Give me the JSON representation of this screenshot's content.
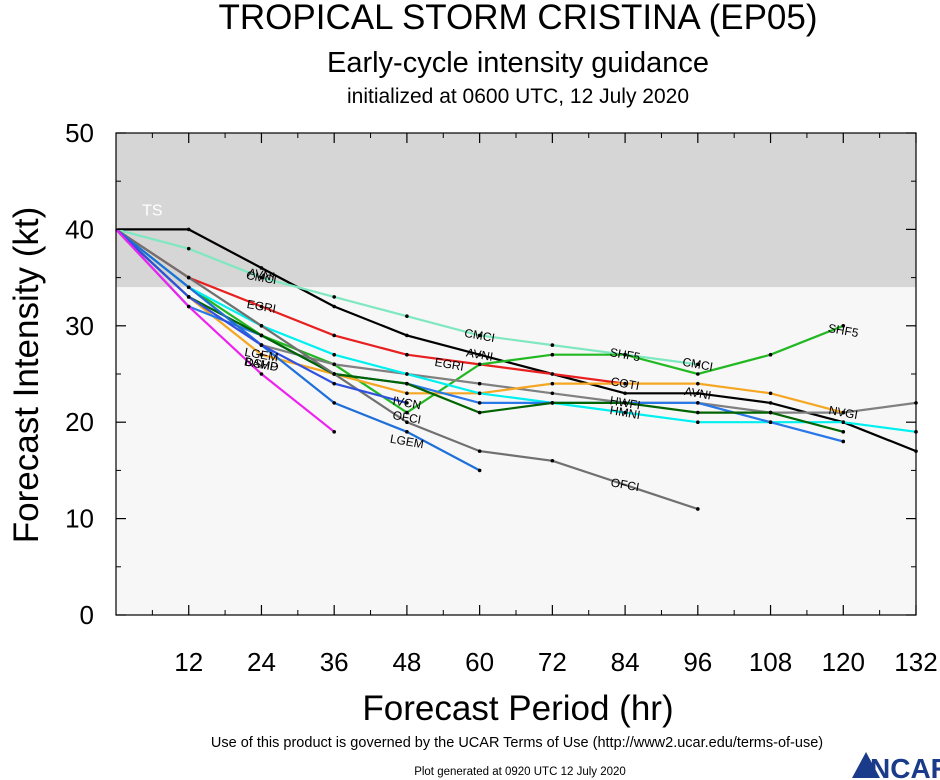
{
  "header": {
    "title": "TROPICAL STORM CRISTINA (EP05)",
    "subtitle": "Early-cycle intensity guidance",
    "init": "initialized at 0600 UTC, 12 July 2020"
  },
  "footer": {
    "terms": "Use of this product is governed by the UCAR Terms of Use (http://www2.ucar.edu/terms-of-use)",
    "generated": "Plot generated at 0920 UTC   12 July 2020",
    "logo": "NCAR"
  },
  "colors": {
    "ts_band": "#d6d6d6",
    "td_band": "#f7f7f7"
  },
  "chart_data": {
    "type": "line",
    "xlabel": "Forecast Period (hr)",
    "ylabel": "Forecast Intensity (kt)",
    "xlim": [
      0,
      132
    ],
    "ylim": [
      0,
      50
    ],
    "xticks": [
      12,
      24,
      36,
      48,
      60,
      72,
      84,
      96,
      108,
      120,
      132
    ],
    "yticks": [
      0,
      10,
      20,
      30,
      40,
      50
    ],
    "bands": [
      {
        "label": "TS",
        "from": 34,
        "to": 50,
        "color": "#d6d6d6"
      },
      {
        "label": "",
        "from": 0,
        "to": 34,
        "color": "#f7f7f7"
      }
    ],
    "grid": false,
    "series": [
      {
        "name": "AVNI",
        "color": "#000000",
        "label_at": [
          [
            24,
            35.3
          ],
          [
            60,
            27
          ],
          [
            96,
            23
          ]
        ],
        "points": [
          [
            0,
            40
          ],
          [
            12,
            40
          ],
          [
            24,
            36
          ],
          [
            36,
            32
          ],
          [
            48,
            29
          ],
          [
            60,
            27
          ],
          [
            72,
            25
          ],
          [
            84,
            23
          ],
          [
            96,
            23
          ],
          [
            108,
            22
          ],
          [
            120,
            20
          ],
          [
            132,
            17
          ]
        ]
      },
      {
        "name": "CMCI",
        "color": "#7fe8c0",
        "label_at": [
          [
            24,
            35
          ],
          [
            60,
            29
          ],
          [
            96,
            26
          ]
        ],
        "points": [
          [
            0,
            40
          ],
          [
            12,
            38
          ],
          [
            24,
            35
          ],
          [
            36,
            33
          ],
          [
            48,
            31
          ],
          [
            60,
            29
          ],
          [
            72,
            28
          ],
          [
            84,
            27
          ],
          [
            96,
            26
          ]
        ]
      },
      {
        "name": "EGRI",
        "color": "#e82020",
        "label_at": [
          [
            24,
            32
          ],
          [
            55,
            26
          ]
        ],
        "points": [
          [
            0,
            40
          ],
          [
            12,
            35
          ],
          [
            24,
            32
          ],
          [
            36,
            29
          ],
          [
            48,
            27
          ],
          [
            60,
            26
          ],
          [
            72,
            25
          ],
          [
            84,
            24
          ]
        ]
      },
      {
        "name": "SHF5",
        "color": "#22b822",
        "label_at": [
          [
            84,
            27
          ],
          [
            120,
            29.5
          ]
        ],
        "points": [
          [
            0,
            40
          ],
          [
            12,
            34
          ],
          [
            24,
            29
          ],
          [
            36,
            26
          ],
          [
            48,
            21
          ],
          [
            60,
            26
          ],
          [
            72,
            27
          ],
          [
            84,
            27
          ],
          [
            96,
            25
          ],
          [
            108,
            27
          ],
          [
            120,
            30
          ]
        ]
      },
      {
        "name": "NVGI",
        "color": "#808080",
        "label_at": [
          [
            120,
            21
          ]
        ],
        "points": [
          [
            0,
            40
          ],
          [
            12,
            34
          ],
          [
            24,
            28
          ],
          [
            36,
            26
          ],
          [
            48,
            25
          ],
          [
            60,
            24
          ],
          [
            72,
            23
          ],
          [
            84,
            22
          ],
          [
            96,
            22
          ],
          [
            108,
            21
          ],
          [
            120,
            21
          ],
          [
            132,
            22
          ]
        ]
      },
      {
        "name": "COTI",
        "color": "#f5a623",
        "label_at": [
          [
            84,
            24
          ]
        ],
        "points": [
          [
            0,
            40
          ],
          [
            12,
            33
          ],
          [
            24,
            27
          ],
          [
            36,
            25
          ],
          [
            48,
            23
          ],
          [
            60,
            23
          ],
          [
            72,
            24
          ],
          [
            84,
            24
          ],
          [
            96,
            24
          ],
          [
            108,
            23
          ],
          [
            120,
            21
          ]
        ]
      },
      {
        "name": "HMNI",
        "color": "#00f0f0",
        "label_at": [
          [
            84,
            21
          ]
        ],
        "points": [
          [
            0,
            40
          ],
          [
            12,
            34
          ],
          [
            24,
            30
          ],
          [
            36,
            27
          ],
          [
            48,
            25
          ],
          [
            60,
            23
          ],
          [
            72,
            22
          ],
          [
            84,
            21
          ],
          [
            96,
            20
          ],
          [
            108,
            20
          ],
          [
            120,
            20
          ],
          [
            132,
            19
          ]
        ]
      },
      {
        "name": "HWFI",
        "color": "#2a78e8",
        "label_at": [
          [
            84,
            22
          ]
        ],
        "points": [
          [
            0,
            40
          ],
          [
            12,
            32
          ],
          [
            24,
            29
          ],
          [
            36,
            25
          ],
          [
            48,
            24
          ],
          [
            60,
            22
          ],
          [
            72,
            22
          ],
          [
            84,
            22
          ],
          [
            96,
            22
          ],
          [
            108,
            20
          ],
          [
            120,
            18
          ]
        ]
      },
      {
        "name": "IVCN",
        "color": "#006400",
        "label_at": [
          [
            48,
            22
          ]
        ],
        "points": [
          [
            0,
            40
          ],
          [
            12,
            33
          ],
          [
            24,
            29
          ],
          [
            36,
            25
          ],
          [
            48,
            24
          ],
          [
            60,
            21
          ],
          [
            72,
            22
          ],
          [
            84,
            22
          ],
          [
            96,
            21
          ],
          [
            108,
            21
          ],
          [
            120,
            19
          ]
        ]
      },
      {
        "name": "OFCI",
        "color": "#707070",
        "label_at": [
          [
            48,
            20.5
          ],
          [
            84,
            13.5
          ]
        ],
        "points": [
          [
            0,
            40
          ],
          [
            12,
            35
          ],
          [
            24,
            30
          ],
          [
            36,
            25
          ],
          [
            48,
            20
          ],
          [
            60,
            17
          ],
          [
            72,
            16
          ],
          [
            96,
            11
          ]
        ]
      },
      {
        "name": "LGEM",
        "color": "#1f6fd8",
        "label_at": [
          [
            48,
            18
          ],
          [
            24,
            27
          ]
        ],
        "points": [
          [
            0,
            40
          ],
          [
            12,
            34
          ],
          [
            24,
            28
          ],
          [
            36,
            22
          ],
          [
            48,
            19
          ],
          [
            60,
            15
          ]
        ]
      },
      {
        "name": "DSHP",
        "color": "#3050e0",
        "label_at": [
          [
            24,
            26
          ]
        ],
        "points": [
          [
            0,
            40
          ],
          [
            12,
            33
          ],
          [
            24,
            28
          ],
          [
            36,
            24
          ],
          [
            48,
            22
          ]
        ]
      },
      {
        "name": "BAMD",
        "color": "#ee22ee",
        "label_at": [
          [
            24,
            26
          ]
        ],
        "points": [
          [
            0,
            40
          ],
          [
            12,
            32
          ],
          [
            24,
            25
          ],
          [
            36,
            19
          ]
        ]
      }
    ]
  }
}
